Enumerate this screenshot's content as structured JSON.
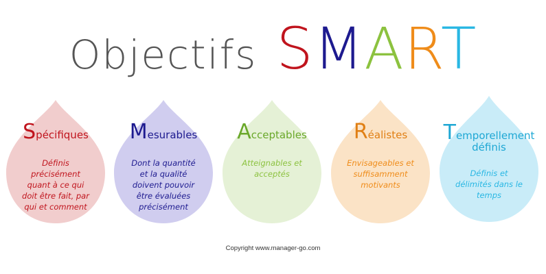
{
  "title": {
    "word": "Objectifs",
    "smart_letters": [
      {
        "letter": "S",
        "color": "#c0141d"
      },
      {
        "letter": "M",
        "color": "#1d1a8f"
      },
      {
        "letter": "A",
        "color": "#8cc23f"
      },
      {
        "letter": "R",
        "color": "#ef8c1a"
      },
      {
        "letter": "T",
        "color": "#29b7e3"
      }
    ]
  },
  "drops": [
    {
      "initial": "S",
      "rest": "pécifiques",
      "rest_line2": "",
      "description": "Définis précisément quant à ce qui doit être fait, par qui et comment",
      "fill": "#f1cdcd",
      "text_color": "#c0141d",
      "head_color": "#c0141d"
    },
    {
      "initial": "M",
      "rest": "esurables",
      "rest_line2": "",
      "description": "Dont la quantité et la qualité doivent pouvoir être évaluées précisément",
      "fill": "#d0cdef",
      "text_color": "#1d1a8f",
      "head_color": "#1d1a8f"
    },
    {
      "initial": "A",
      "rest": "cceptables",
      "rest_line2": "",
      "description": "Atteignables et acceptés",
      "fill": "#e5f1d6",
      "text_color": "#8cc23f",
      "head_color": "#6aa82a"
    },
    {
      "initial": "R",
      "rest": "éalistes",
      "rest_line2": "",
      "description": "Envisageables et suffisamment motivants",
      "fill": "#fbe3c6",
      "text_color": "#ef8c1a",
      "head_color": "#e07f14"
    },
    {
      "initial": "T",
      "rest": "emporellement",
      "rest_line2": "définis",
      "description": "Définis et délimités dans le temps",
      "fill": "#c9ecf8",
      "text_color": "#29b7e3",
      "head_color": "#1ea7d4"
    }
  ],
  "copyright": "Copyright www.manager-go.com"
}
